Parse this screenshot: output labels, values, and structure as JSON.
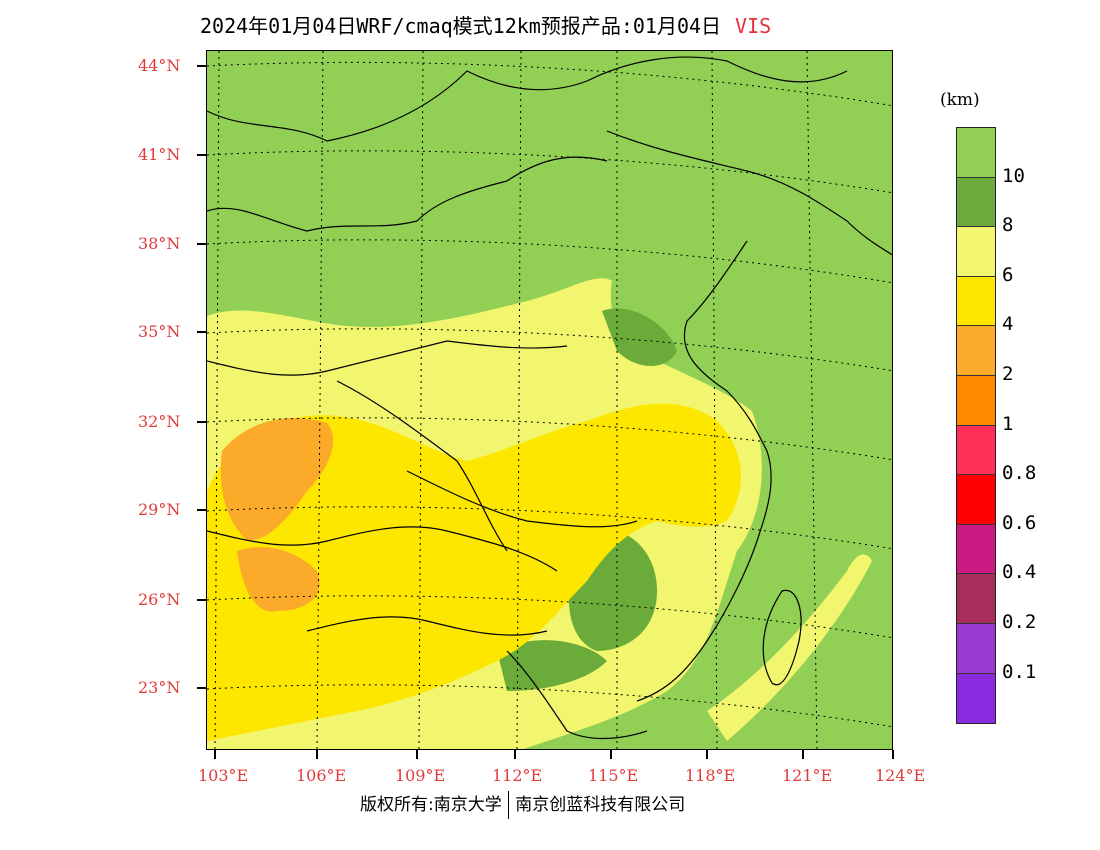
{
  "header": {
    "title": "2024年01月04日WRF/cmaq模式12km预报产品:01月04日",
    "variable": "VIS"
  },
  "axes": {
    "lat_labels": [
      "44°N",
      "41°N",
      "38°N",
      "35°N",
      "32°N",
      "29°N",
      "26°N",
      "23°N"
    ],
    "lon_labels": [
      "103°E",
      "106°E",
      "109°E",
      "112°E",
      "115°E",
      "118°E",
      "121°E",
      "124°E"
    ]
  },
  "legend": {
    "unit": "(km)",
    "labels": [
      "10",
      "8",
      "6",
      "4",
      "2",
      "1",
      "0.8",
      "0.6",
      "0.4",
      "0.2",
      "0.1"
    ],
    "colors": [
      "#92cf55",
      "#6aab3a",
      "#f2f56e",
      "#fde600",
      "#fbab29",
      "#ff8a00",
      "#ff2f5a",
      "#ff0000",
      "#cb1a82",
      "#a82c5c",
      "#9a3ad0",
      "#8a2be2"
    ]
  },
  "footer": {
    "left": "版权所有:南京大学",
    "right": "南京创蓝科技有限公司"
  }
}
